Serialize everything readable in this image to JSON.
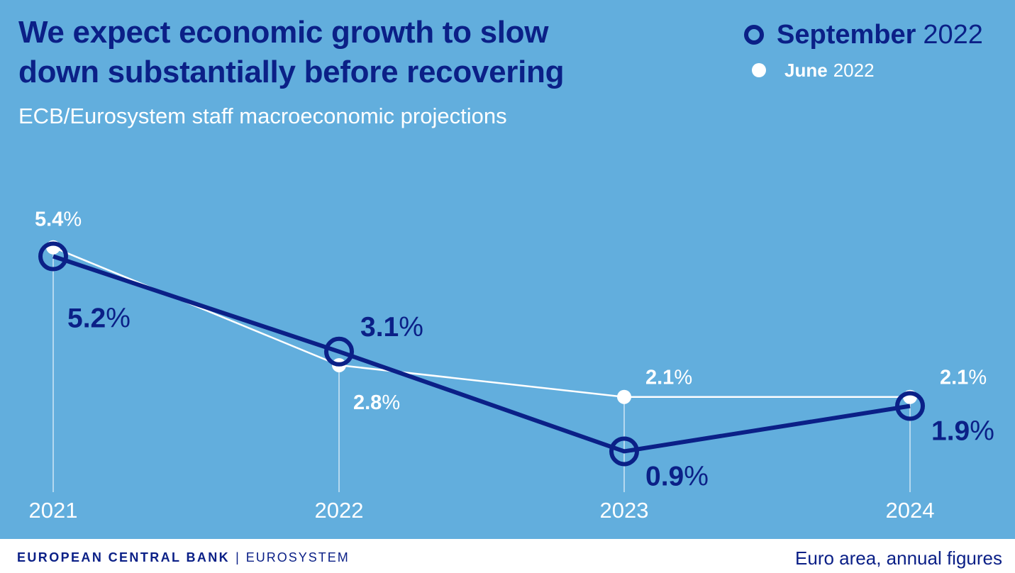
{
  "header": {
    "title_line1": "We expect economic growth to slow",
    "title_line2": "down substantially before recovering",
    "subtitle": "ECB/Eurosystem staff macroeconomic projections"
  },
  "legend": {
    "september": {
      "bold": "September",
      "rest": "2022"
    },
    "june": {
      "bold": "June",
      "rest": "2022"
    }
  },
  "footer": {
    "org_bold": "EUROPEAN CENTRAL BANK",
    "separator": "|",
    "org_rest": "EUROSYSTEM",
    "note": "Euro area, annual figures"
  },
  "colors": {
    "background": "#62aedd",
    "september": "#0b2087",
    "june": "#ffffff",
    "gridline": "#cfe6f5"
  },
  "chart_data": {
    "type": "line",
    "categories": [
      "2021",
      "2022",
      "2023",
      "2024"
    ],
    "ylim": [
      0,
      6.6
    ],
    "grid": "vertical",
    "legend_position": "top-right",
    "series": [
      {
        "name": "June 2022",
        "values": [
          5.4,
          2.8,
          2.1,
          2.1
        ],
        "labels": [
          "5.4",
          "2.8",
          "2.1",
          "2.1"
        ],
        "unit": "%"
      },
      {
        "name": "September 2022",
        "values": [
          5.2,
          3.1,
          0.9,
          1.9
        ],
        "labels": [
          "5.2",
          "3.1",
          "0.9",
          "1.9"
        ],
        "unit": "%"
      }
    ]
  }
}
